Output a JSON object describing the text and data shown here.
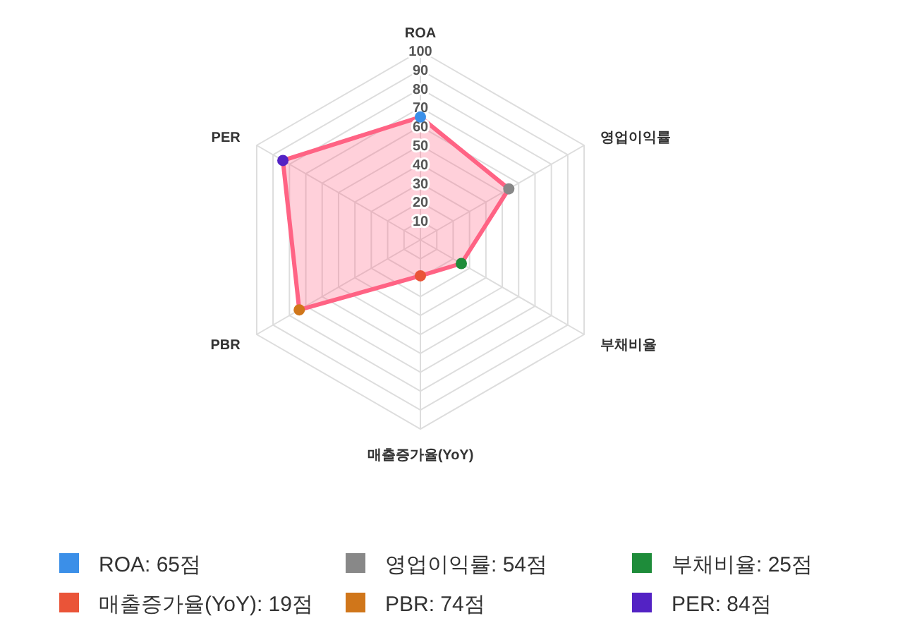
{
  "chart_data": {
    "type": "radar",
    "categories": [
      "ROA",
      "영업이익률",
      "부채비율",
      "매출증가율(YoY)",
      "PBR",
      "PER"
    ],
    "series": [
      {
        "color": "#ff6384",
        "values": [
          65,
          54,
          25,
          19,
          74,
          84
        ],
        "colors": [
          "#3b8fe8",
          "#888888",
          "#1e8c3a",
          "#ea5438",
          "#d0761a",
          "#5322c4"
        ]
      }
    ],
    "annotations": [
      "ROA: 65점",
      "영업이익률: 54점",
      "부채비율: 25점",
      "매출증가율(YoY): 19점",
      "PBR: 74점",
      "PER: 84점"
    ],
    "ylim": [
      0,
      100
    ],
    "yticks": [
      10,
      20,
      30,
      40,
      50,
      60,
      70,
      80,
      90,
      100
    ],
    "grid": true,
    "marker": "circle"
  }
}
